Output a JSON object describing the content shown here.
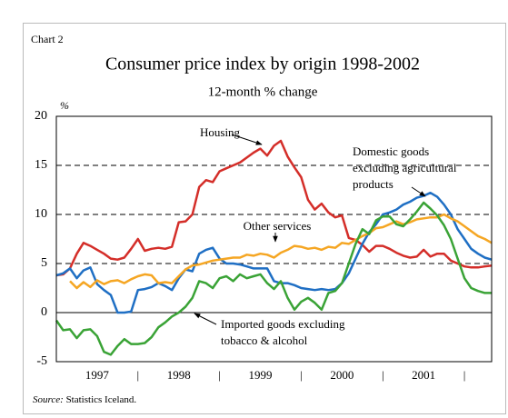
{
  "chart_data": {
    "type": "line",
    "chart_label": "Chart 2",
    "title": "Consumer price index by origin 1998-2002",
    "subtitle": "12-month % change",
    "y_unit": "%",
    "source": {
      "label": "Source:",
      "text": "Statistics Iceland."
    },
    "categories": [
      null,
      null,
      null,
      null,
      null,
      null,
      "1997",
      null,
      null,
      null,
      null,
      null,
      "|",
      null,
      null,
      null,
      null,
      null,
      "1998",
      null,
      null,
      null,
      null,
      null,
      "|",
      null,
      null,
      null,
      null,
      null,
      "1999",
      null,
      null,
      null,
      null,
      null,
      "|",
      null,
      null,
      null,
      null,
      null,
      "2000",
      null,
      null,
      null,
      null,
      null,
      "|",
      null,
      null,
      null,
      null,
      null,
      "2001",
      null,
      null,
      null,
      null,
      null,
      "|",
      null,
      null,
      null,
      null
    ],
    "ylim": [
      -5,
      20
    ],
    "yticks": [
      -5,
      0,
      5,
      10,
      15,
      20
    ],
    "grid": true,
    "series": [
      {
        "name": "Housing",
        "color": "#d42e29",
        "values": [
          3.8,
          3.9,
          4.5,
          6.0,
          7.1,
          6.8,
          6.4,
          6.0,
          5.5,
          5.4,
          5.6,
          6.5,
          7.5,
          6.3,
          6.5,
          6.6,
          6.5,
          6.7,
          9.2,
          9.3,
          10.0,
          12.8,
          13.5,
          13.3,
          14.4,
          14.7,
          15.0,
          15.3,
          15.8,
          16.3,
          16.7,
          16.0,
          17.0,
          17.5,
          15.9,
          14.8,
          13.8,
          11.5,
          10.5,
          11.1,
          10.2,
          9.7,
          9.9,
          7.6,
          7.4,
          6.9,
          6.2,
          6.8,
          6.8,
          6.5,
          6.1,
          5.8,
          5.6,
          5.7,
          6.4,
          5.7,
          6.0,
          6.0,
          5.3,
          5.0,
          4.7,
          4.6,
          4.6,
          4.7,
          4.8
        ]
      },
      {
        "name": "Domestic goods excluding agricultural products",
        "color": "#1f6fc4",
        "values": [
          3.8,
          4.0,
          4.5,
          3.5,
          4.3,
          4.6,
          2.9,
          2.3,
          1.8,
          0.0,
          0.0,
          0.1,
          2.3,
          2.4,
          2.6,
          3.0,
          2.7,
          2.3,
          3.5,
          4.4,
          4.2,
          6.0,
          6.4,
          6.6,
          5.5,
          5.0,
          5.0,
          4.9,
          4.7,
          4.5,
          4.5,
          4.5,
          3.2,
          3.0,
          3.0,
          2.8,
          2.5,
          2.4,
          2.3,
          2.4,
          2.3,
          2.4,
          3.0,
          4.0,
          5.5,
          7.0,
          8.2,
          9.0,
          10.0,
          10.2,
          10.5,
          11.0,
          11.3,
          11.7,
          11.9,
          12.2,
          11.8,
          11.0,
          10.0,
          8.5,
          7.5,
          6.5,
          6.0,
          5.6,
          5.4
        ]
      },
      {
        "name": "Other services",
        "color": "#f5a623",
        "values": [
          null,
          null,
          3.2,
          2.5,
          3.1,
          2.6,
          3.3,
          2.9,
          3.2,
          3.3,
          3.0,
          3.4,
          3.7,
          3.9,
          3.8,
          3.0,
          3.1,
          3.0,
          3.7,
          4.4,
          4.8,
          4.9,
          5.1,
          5.3,
          5.4,
          5.5,
          5.6,
          5.6,
          5.9,
          5.8,
          6.0,
          5.9,
          5.6,
          6.1,
          6.4,
          6.8,
          6.7,
          6.5,
          6.6,
          6.4,
          6.7,
          6.6,
          7.1,
          7.0,
          7.4,
          7.8,
          8.1,
          8.6,
          8.7,
          9.0,
          9.3,
          9.0,
          9.2,
          9.5,
          9.6,
          9.7,
          9.7,
          10.0,
          9.6,
          9.3,
          8.8,
          8.3,
          7.8,
          7.5,
          7.1
        ]
      },
      {
        "name": "Imported goods excluding tobacco & alcohol",
        "color": "#3aa336",
        "values": [
          -0.8,
          -1.8,
          -1.7,
          -2.6,
          -1.8,
          -1.7,
          -2.4,
          -4.0,
          -4.3,
          -3.4,
          -2.7,
          -3.2,
          -3.2,
          -3.1,
          -2.5,
          -1.5,
          -1.0,
          -0.4,
          0.0,
          0.6,
          1.5,
          3.2,
          3.0,
          2.5,
          3.5,
          3.7,
          3.2,
          3.9,
          3.5,
          3.7,
          3.9,
          3.0,
          2.4,
          3.2,
          1.5,
          0.3,
          1.1,
          1.5,
          1.0,
          0.3,
          2.0,
          2.2,
          3.0,
          5.0,
          7.0,
          8.5,
          8.0,
          9.4,
          9.8,
          9.8,
          9.0,
          8.8,
          9.5,
          10.3,
          11.2,
          10.6,
          9.9,
          8.9,
          7.5,
          5.5,
          3.5,
          2.5,
          2.2,
          2.0,
          2.0
        ]
      }
    ],
    "annotations": [
      {
        "lines": [
          "Housing"
        ]
      },
      {
        "lines": [
          "Domestic goods",
          "excluding agricultural",
          "products"
        ]
      },
      {
        "lines": [
          "Other services"
        ]
      },
      {
        "lines": [
          "Imported goods excluding",
          "tobacco & alcohol"
        ]
      }
    ]
  }
}
